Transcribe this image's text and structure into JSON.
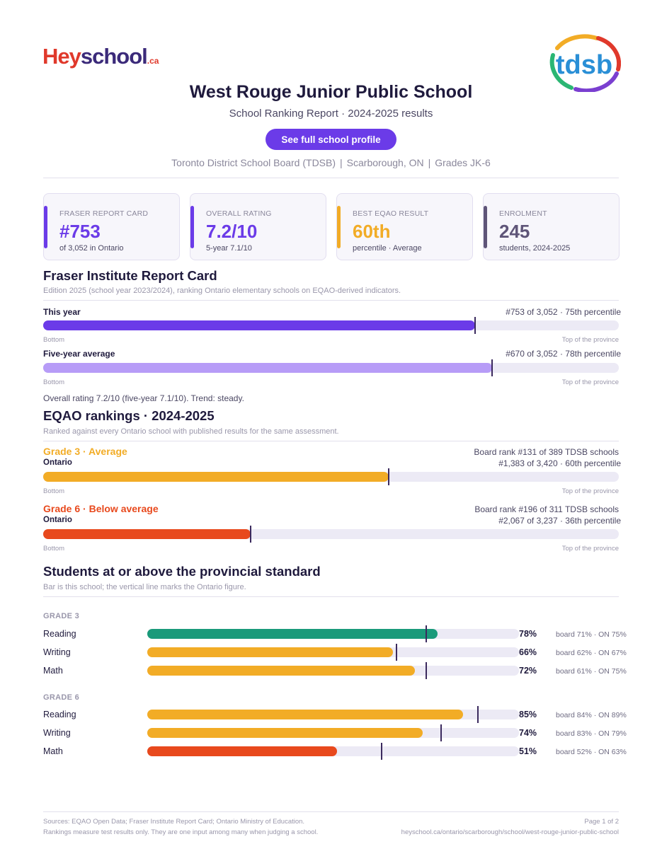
{
  "logo": {
    "hey": "Hey",
    "school": "school",
    "ca": ".ca"
  },
  "board_logo": "tdsb",
  "school_name": "West Rouge Junior Public School",
  "subtitle": {
    "report": "School Ranking Report",
    "results": "2024-2025 results"
  },
  "profile_button": "See full school profile",
  "meta": {
    "board": "Toronto District School Board (TDSB)",
    "location": "Scarborough, ON",
    "grades": "Grades JK-6"
  },
  "cards": [
    {
      "label": "FRASER REPORT CARD",
      "value": "#753",
      "sub": "of 3,052 in Ontario",
      "color": "#6b3be8"
    },
    {
      "label": "OVERALL RATING",
      "value": "7.2/10",
      "sub": "5-year 7.1/10",
      "color": "#6b3be8"
    },
    {
      "label": "BEST EQAO RESULT",
      "value": "60th",
      "sub": "percentile  ·  Average",
      "color": "#f2ac26"
    },
    {
      "label": "ENROLMENT",
      "value": "245",
      "sub": "students, 2024-2025",
      "color": "#5f5578"
    }
  ],
  "fraser": {
    "heading": "Fraser Institute Report Card",
    "description": "Edition 2025 (school year 2023/2024), ranking Ontario elementary schools on EQAO-derived indicators.",
    "rows": [
      {
        "label": "This year",
        "right": "#753 of 3,052  ·  75th percentile",
        "fill": 0.75,
        "marker": 0.75,
        "color": "#6b3be8"
      },
      {
        "label": "Five-year average",
        "right": "#670 of 3,052  ·  78th percentile",
        "fill": 0.78,
        "marker": 0.78,
        "color": "#b79cf7"
      }
    ],
    "bottom_label": "Bottom",
    "top_label": "Top of the province",
    "note": "Overall rating 7.2/10 (five-year 7.1/10). Trend: steady."
  },
  "eqao": {
    "heading": "EQAO rankings  ·  2024-2025",
    "description": "Ranked against every Ontario school with published results for the same assessment.",
    "rows": [
      {
        "grade": "Grade 3  ·  Average",
        "sub": "Ontario",
        "board": "Board rank #131 of 389 TDSB schools",
        "province": "#1,383 of 3,420  ·  60th percentile",
        "fill": 0.6,
        "marker": 0.6,
        "color": "#f2ac26"
      },
      {
        "grade": "Grade 6  ·  Below average",
        "sub": "Ontario",
        "board": "Board rank #196 of 311 TDSB schools",
        "province": "#2,067 of 3,237  ·  36th percentile",
        "fill": 0.36,
        "marker": 0.36,
        "color": "#e8491d"
      }
    ],
    "bottom_label": "Bottom",
    "top_label": "Top of the province"
  },
  "standard": {
    "heading": "Students at or above the provincial standard",
    "description": "Bar is this school; the vertical line marks the Ontario figure.",
    "groups": [
      {
        "title": "GRADE 3",
        "rows": [
          {
            "subject": "Reading",
            "value": 78,
            "pct": "78%",
            "ontario": 75,
            "compare": "board 71%  ·  ON 75%",
            "color": "#1a9a7a"
          },
          {
            "subject": "Writing",
            "value": 66,
            "pct": "66%",
            "ontario": 67,
            "compare": "board 62%  ·  ON 67%",
            "color": "#f2ac26"
          },
          {
            "subject": "Math",
            "value": 72,
            "pct": "72%",
            "ontario": 75,
            "compare": "board 61%  ·  ON 75%",
            "color": "#f2ac26"
          }
        ]
      },
      {
        "title": "GRADE 6",
        "rows": [
          {
            "subject": "Reading",
            "value": 85,
            "pct": "85%",
            "ontario": 89,
            "compare": "board 84%  ·  ON 89%",
            "color": "#f2ac26"
          },
          {
            "subject": "Writing",
            "value": 74,
            "pct": "74%",
            "ontario": 79,
            "compare": "board 83%  ·  ON 79%",
            "color": "#f2ac26"
          },
          {
            "subject": "Math",
            "value": 51,
            "pct": "51%",
            "ontario": 63,
            "compare": "board 52%  ·  ON 63%",
            "color": "#e8491d"
          }
        ]
      }
    ]
  },
  "footer": {
    "sources": "Sources: EQAO Open Data; Fraser Institute Report Card; Ontario Ministry of Education.",
    "disclaimer": "Rankings measure test results only. They are one input among many when judging a school.",
    "page": "Page 1 of 2",
    "url": "heyschool.ca/ontario/scarborough/school/west-rouge-junior-public-school"
  }
}
